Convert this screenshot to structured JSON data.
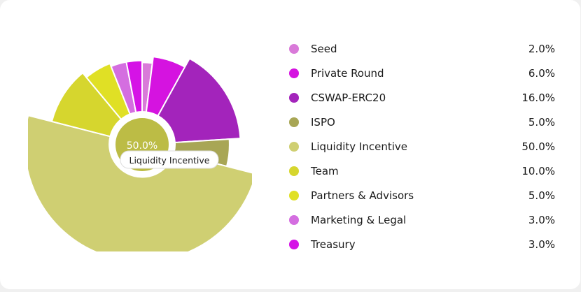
{
  "chart_data": {
    "type": "pie",
    "title": "",
    "categories": [
      "Seed",
      "Private Round",
      "CSWAP-ERC20",
      "ISPO",
      "Liquidity Incentive",
      "Team",
      "Partners & Advisors",
      "Marketing & Legal",
      "Treasury"
    ],
    "values": [
      2.0,
      6.0,
      16.0,
      5.0,
      50.0,
      10.0,
      5.0,
      3.0,
      3.0
    ],
    "value_labels": [
      "2.0%",
      "6.0%",
      "16.0%",
      "5.0%",
      "50.0%",
      "10.0%",
      "5.0%",
      "3.0%",
      "3.0%"
    ],
    "colors": [
      "#d97ad9",
      "#d513e0",
      "#a324bb",
      "#a8a655",
      "#cfcf72",
      "#d6d62e",
      "#e0e025",
      "#d46ee0",
      "#d513e6"
    ],
    "highlight": {
      "value_label": "50.0%",
      "name": "Liquidity Incentive",
      "color": "#bcbc45"
    },
    "legend_position": "right"
  }
}
